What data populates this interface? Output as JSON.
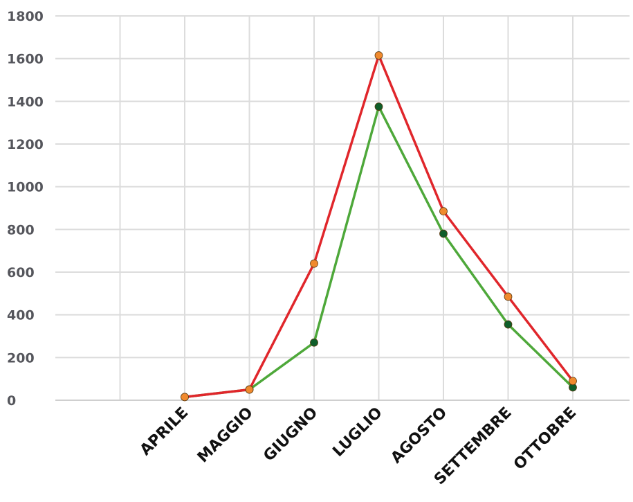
{
  "chart_data": {
    "type": "line",
    "categories": [
      "",
      "",
      "APRILE",
      "MAGGIO",
      "GIUGNO",
      "LUGLIO",
      "AGOSTO",
      "SETTEMBRE",
      "OTTOBRE"
    ],
    "ylim": [
      0,
      1800
    ],
    "yticks": [
      "0",
      "200",
      "400",
      "600",
      "800",
      "1000",
      "1200",
      "1400",
      "1600",
      "1800"
    ],
    "grid": true,
    "series": [
      {
        "line_color": "#e0262b",
        "marker_color": "#f08a2e",
        "values": [
          null,
          null,
          15,
          50,
          640,
          1615,
          885,
          485,
          90
        ]
      },
      {
        "line_color": "#4ea83a",
        "marker_color": "#0f5e2a",
        "values": [
          null,
          null,
          15,
          50,
          270,
          1375,
          780,
          355,
          60
        ]
      }
    ]
  }
}
